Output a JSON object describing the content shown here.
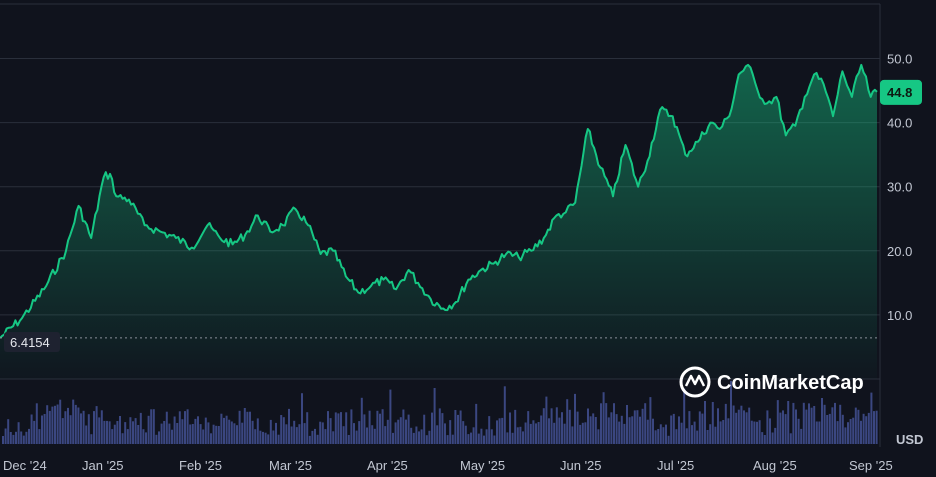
{
  "chart_data": {
    "type": "area",
    "watermark": "CoinMarketCap",
    "currency": "USD",
    "current_value": "44.8",
    "start_value": "6.4154",
    "y_ticks": [
      "10.0",
      "20.0",
      "30.0",
      "40.0",
      "50.0"
    ],
    "ylim": [
      0,
      58.5
    ],
    "x_ticks": [
      "Dec '24",
      "Jan '25",
      "Feb '25",
      "Mar '25",
      "Apr '25",
      "May '25",
      "Jun '25",
      "Jul '25",
      "Aug '25",
      "Sep '25"
    ],
    "grid": true,
    "colors": {
      "line": "#16c784",
      "volume": "#3b4781",
      "background": "#10131d"
    },
    "x": [
      "2024-11-27",
      "2024-12-04",
      "2024-12-11",
      "2024-12-18",
      "2024-12-22",
      "2024-12-26",
      "2024-12-30",
      "2025-01-01",
      "2025-01-03",
      "2025-01-07",
      "2025-01-12",
      "2025-01-17",
      "2025-01-22",
      "2025-01-27",
      "2025-02-01",
      "2025-02-05",
      "2025-02-09",
      "2025-02-13",
      "2025-02-17",
      "2025-02-21",
      "2025-02-25",
      "2025-03-01",
      "2025-03-05",
      "2025-03-09",
      "2025-03-13",
      "2025-03-17",
      "2025-03-21",
      "2025-03-25",
      "2025-03-29",
      "2025-04-02",
      "2025-04-06",
      "2025-04-09",
      "2025-04-13",
      "2025-04-17",
      "2025-04-21",
      "2025-04-25",
      "2025-04-29",
      "2025-05-03",
      "2025-05-07",
      "2025-05-11",
      "2025-05-15",
      "2025-05-19",
      "2025-05-23",
      "2025-05-26",
      "2025-05-29",
      "2025-06-02",
      "2025-06-06",
      "2025-06-10",
      "2025-06-14",
      "2025-06-18",
      "2025-06-21",
      "2025-06-25",
      "2025-06-29",
      "2025-07-03",
      "2025-07-07",
      "2025-07-11",
      "2025-07-14",
      "2025-07-17",
      "2025-07-20",
      "2025-07-23",
      "2025-07-26",
      "2025-07-29",
      "2025-08-01",
      "2025-08-04",
      "2025-08-07",
      "2025-08-10",
      "2025-08-13",
      "2025-08-16",
      "2025-08-19",
      "2025-08-22",
      "2025-08-25",
      "2025-08-28",
      "2025-08-31",
      "2025-09-02"
    ],
    "series": [
      {
        "values": [
          6.4,
          9.5,
          14.0,
          20.0,
          27.0,
          22.0,
          31.5,
          32.0,
          28.5,
          28.0,
          24.0,
          23.0,
          22.0,
          20.5,
          24.0,
          22.0,
          21.0,
          22.5,
          25.5,
          23.0,
          24.0,
          26.5,
          24.0,
          19.5,
          20.0,
          16.0,
          13.5,
          14.5,
          15.5,
          14.0,
          17.0,
          15.0,
          12.5,
          11.0,
          12.0,
          15.5,
          17.0,
          18.0,
          19.5,
          19.0,
          20.0,
          22.0,
          25.5,
          26.0,
          27.5,
          39.0,
          33.0,
          28.5,
          36.5,
          30.0,
          34.0,
          42.0,
          41.0,
          35.0,
          37.0,
          40.0,
          39.0,
          41.0,
          47.5,
          49.0,
          45.0,
          43.0,
          44.0,
          38.0,
          39.5,
          44.0,
          47.5,
          46.0,
          41.0,
          48.0,
          44.0,
          49.0,
          44.0,
          44.8
        ]
      }
    ]
  }
}
